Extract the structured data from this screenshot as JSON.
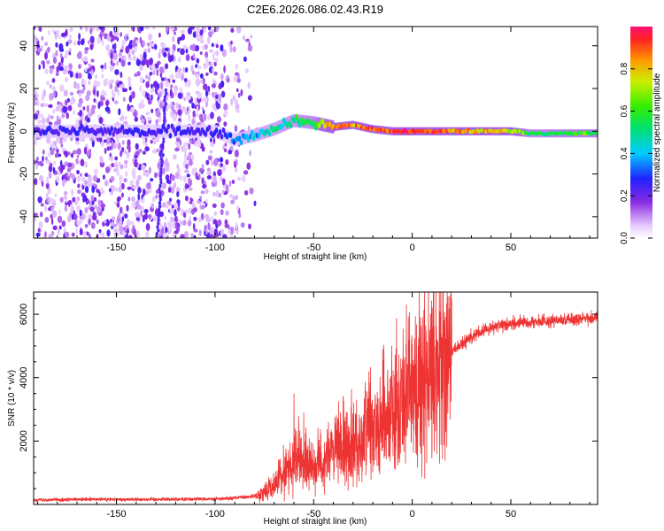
{
  "title": "C2E6.2026.086.02.43.R19",
  "chart_data": [
    {
      "type": "heatmap",
      "xlabel": "Height of straight line (km)",
      "ylabel": "Frequency (Hz)",
      "xlim": [
        -192,
        94
      ],
      "ylim": [
        -50,
        49
      ],
      "xticks": [
        -150,
        -100,
        -50,
        0,
        50
      ],
      "yticks": [
        -40,
        -20,
        0,
        20,
        40
      ],
      "colorbar": {
        "label": "Normalized spectral amplitude",
        "range": [
          0,
          1
        ],
        "ticks": [
          0.0,
          0.2,
          0.4,
          0.6,
          0.8
        ],
        "tick_labels": [
          "0.0",
          "0.2",
          "0.4",
          "0.6",
          "0.8"
        ]
      },
      "ridge": [
        {
          "x": -192,
          "f": 0,
          "amp": 0.3
        },
        {
          "x": -100,
          "f": 0,
          "amp": 0.25
        },
        {
          "x": -90,
          "f": -4,
          "amp": 0.3
        },
        {
          "x": -80,
          "f": -2,
          "amp": 0.4
        },
        {
          "x": -70,
          "f": 1,
          "amp": 0.45
        },
        {
          "x": -60,
          "f": 5,
          "amp": 0.5
        },
        {
          "x": -50,
          "f": 4,
          "amp": 0.55
        },
        {
          "x": -40,
          "f": 2,
          "amp": 0.9
        },
        {
          "x": -30,
          "f": 3,
          "amp": 0.85
        },
        {
          "x": -20,
          "f": 1,
          "amp": 0.9
        },
        {
          "x": -10,
          "f": 0,
          "amp": 0.95
        },
        {
          "x": 0,
          "f": 0,
          "amp": 0.95
        },
        {
          "x": 20,
          "f": 0,
          "amp": 0.85
        },
        {
          "x": 50,
          "f": 0,
          "amp": 0.75
        },
        {
          "x": 60,
          "f": -1,
          "amp": 0.55
        },
        {
          "x": 94,
          "f": -1,
          "amp": 0.6
        }
      ]
    },
    {
      "type": "line",
      "xlabel": "Height of straight line (km)",
      "ylabel": "SNR (10 * v/v)",
      "xlim": [
        -192,
        94
      ],
      "ylim": [
        0,
        6700
      ],
      "xticks": [
        -150,
        -100,
        -50,
        0,
        50
      ],
      "yticks": [
        2000,
        4000,
        6000
      ],
      "color": "#ee3333",
      "envelope": [
        {
          "x": -192,
          "y": 150
        },
        {
          "x": -150,
          "y": 160
        },
        {
          "x": -100,
          "y": 170
        },
        {
          "x": -80,
          "y": 250
        },
        {
          "x": -70,
          "y": 600
        },
        {
          "x": -60,
          "y": 1400
        },
        {
          "x": -50,
          "y": 1200
        },
        {
          "x": -40,
          "y": 1600
        },
        {
          "x": -30,
          "y": 1900
        },
        {
          "x": -20,
          "y": 2400
        },
        {
          "x": -10,
          "y": 3000
        },
        {
          "x": 0,
          "y": 3500
        },
        {
          "x": 10,
          "y": 4100
        },
        {
          "x": 20,
          "y": 4800
        },
        {
          "x": 30,
          "y": 5300
        },
        {
          "x": 40,
          "y": 5600
        },
        {
          "x": 50,
          "y": 5700
        },
        {
          "x": 70,
          "y": 5800
        },
        {
          "x": 94,
          "y": 5900
        }
      ],
      "spikes": [
        {
          "x": -60,
          "y": 3500
        },
        {
          "x": -55,
          "y": 2900
        },
        {
          "x": -35,
          "y": 3400
        },
        {
          "x": -22,
          "y": 4200
        },
        {
          "x": -15,
          "y": 4900
        },
        {
          "x": -3,
          "y": 6300
        }
      ]
    }
  ]
}
